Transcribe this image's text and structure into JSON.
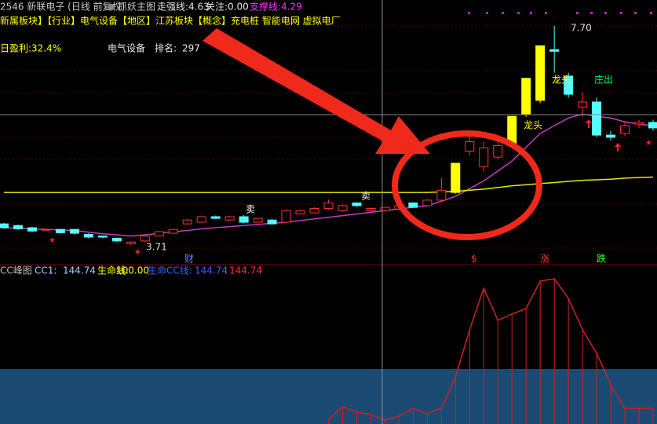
{
  "header": {
    "title": "2546 新联电子 (日线 前复权)",
    "indicator_name": "抓妖主图",
    "items": [
      {
        "label": "走强线:",
        "value": "4.63"
      },
      {
        "label": "关注:",
        "value": "0.00"
      },
      {
        "label": "支撑线:",
        "value": "4.29"
      }
    ],
    "sectors": "新属板块】【行业】电气设备【地区】江苏板块【概念】充电桩 智能电网 虚拟电厂",
    "profit": "日盈利:32.4%",
    "industry": "电气设备",
    "rank_label": "排名:",
    "rank": 297
  },
  "chart_data": {
    "type": "candlestick",
    "ylim": [
      3.4,
      8.17
    ],
    "up_color": "#ff3232",
    "down_color": "#54ffff",
    "highlight_color": "#ffff00",
    "highlighted": [
      32,
      36,
      37,
      38
    ],
    "open": [
      4.11,
      4.08,
      4.04,
      4.0,
      4.01,
      4.01,
      3.92,
      3.89,
      3.85,
      3.75,
      3.8,
      3.89,
      3.94,
      4.11,
      4.14,
      4.24,
      4.18,
      4.24,
      4.14,
      4.18,
      4.14,
      4.29,
      4.31,
      4.39,
      4.35,
      4.49,
      4.35,
      4.35,
      4.38,
      4.49,
      4.44,
      4.54,
      4.68,
      5.43,
      5.15,
      5.32,
      5.53,
      6.1,
      6.35,
      7.27,
      6.79,
      6.23,
      6.32,
      5.72,
      5.75,
      5.92,
      5.95
    ],
    "close": [
      4.04,
      4.02,
      3.98,
      4.01,
      3.95,
      3.94,
      3.87,
      3.87,
      3.8,
      3.78,
      3.89,
      3.97,
      4.01,
      4.18,
      4.24,
      4.21,
      4.24,
      4.14,
      4.21,
      4.11,
      4.35,
      4.35,
      4.39,
      4.49,
      4.44,
      4.44,
      4.39,
      4.41,
      4.44,
      4.41,
      4.54,
      4.72,
      5.21,
      5.6,
      5.49,
      5.53,
      6.06,
      6.75,
      7.34,
      7.24,
      6.46,
      6.32,
      5.72,
      5.68,
      5.89,
      5.95,
      5.85
    ],
    "high": [
      4.13,
      4.1,
      4.06,
      4.03,
      4.02,
      4.02,
      3.94,
      3.9,
      3.86,
      3.8,
      3.9,
      3.98,
      4.02,
      4.2,
      4.26,
      4.26,
      4.26,
      4.27,
      4.22,
      4.2,
      4.37,
      4.37,
      4.41,
      4.55,
      4.46,
      4.5,
      4.41,
      4.42,
      4.46,
      4.5,
      4.56,
      4.95,
      5.21,
      5.75,
      5.6,
      5.65,
      6.06,
      6.75,
      7.34,
      7.7,
      6.85,
      6.5,
      6.4,
      5.8,
      5.95,
      6.0,
      6.0
    ],
    "low": [
      4.02,
      4.0,
      3.96,
      3.98,
      3.93,
      3.92,
      3.85,
      3.85,
      3.78,
      3.71,
      3.78,
      3.88,
      3.93,
      4.1,
      4.13,
      4.2,
      4.17,
      4.12,
      4.13,
      4.1,
      4.13,
      4.28,
      4.3,
      4.37,
      4.33,
      4.42,
      4.33,
      4.34,
      4.36,
      4.4,
      4.43,
      4.52,
      4.66,
      5.35,
      5.05,
      5.28,
      5.5,
      6.05,
      6.3,
      6.85,
      6.4,
      6.05,
      5.68,
      5.62,
      5.7,
      5.85,
      5.8
    ],
    "series": [
      {
        "color": "#c040c0",
        "values": [
          4.04,
          4.03,
          4.02,
          4.01,
          4.0,
          3.99,
          3.96,
          3.93,
          3.91,
          3.89,
          3.91,
          3.94,
          3.97,
          3.99,
          4.02,
          4.04,
          4.06,
          4.08,
          4.1,
          4.12,
          4.14,
          4.17,
          4.2,
          4.23,
          4.26,
          4.29,
          4.32,
          4.35,
          4.38,
          4.41,
          4.44,
          4.52,
          4.61,
          4.75,
          4.89,
          5.07,
          5.25,
          5.5,
          5.75,
          5.89,
          6.03,
          6.1,
          6.06,
          6.03,
          5.96,
          5.92,
          5.89
        ]
      },
      {
        "color": "#e8e800",
        "values": [
          4.68,
          4.68,
          4.68,
          4.68,
          4.68,
          4.68,
          4.68,
          4.68,
          4.68,
          4.68,
          4.68,
          4.68,
          4.68,
          4.68,
          4.68,
          4.68,
          4.68,
          4.68,
          4.68,
          4.68,
          4.68,
          4.68,
          4.68,
          4.68,
          4.68,
          4.68,
          4.68,
          4.68,
          4.68,
          4.68,
          4.68,
          4.69,
          4.7,
          4.72,
          4.74,
          4.77,
          4.8,
          4.82,
          4.84,
          4.86,
          4.88,
          4.9,
          4.91,
          4.92,
          4.94,
          4.95,
          4.96
        ]
      }
    ],
    "annotations": [
      {
        "text": "卖"
      },
      {
        "text": "卖"
      },
      {
        "text": "3.71"
      },
      {
        "text": "7.70"
      },
      {
        "text": "龙头"
      },
      {
        "text": "龙头"
      },
      {
        "text": "庄出"
      },
      {
        "text": "财"
      },
      {
        "text": "$"
      },
      {
        "text": "涨"
      },
      {
        "text": "跌"
      }
    ]
  },
  "indicator": {
    "name": "CC峰图",
    "items": [
      {
        "label": "CC1:",
        "value": "144.74"
      },
      {
        "label": "生命线:",
        "value": "100.00"
      },
      {
        "label": "生命CC线:",
        "value": "144.74"
      },
      {
        "label": ":",
        "value": "144.74"
      }
    ],
    "ylim": [
      0,
      285.7
    ],
    "life_line": 100,
    "color": "#d02020",
    "area_color": "#1b4a73",
    "values": [
      null,
      null,
      null,
      null,
      null,
      null,
      null,
      null,
      null,
      null,
      null,
      null,
      null,
      null,
      null,
      null,
      null,
      null,
      null,
      null,
      null,
      null,
      null,
      7.1,
      31.4,
      21.4,
      17.1,
      7.1,
      14.3,
      28.6,
      18.6,
      28.6,
      85.7,
      171.4,
      247.1,
      188.6,
      200,
      210,
      260,
      264.3,
      228.6,
      171.4,
      128.6,
      71.4,
      28.6,
      28.6,
      28.6
    ]
  }
}
